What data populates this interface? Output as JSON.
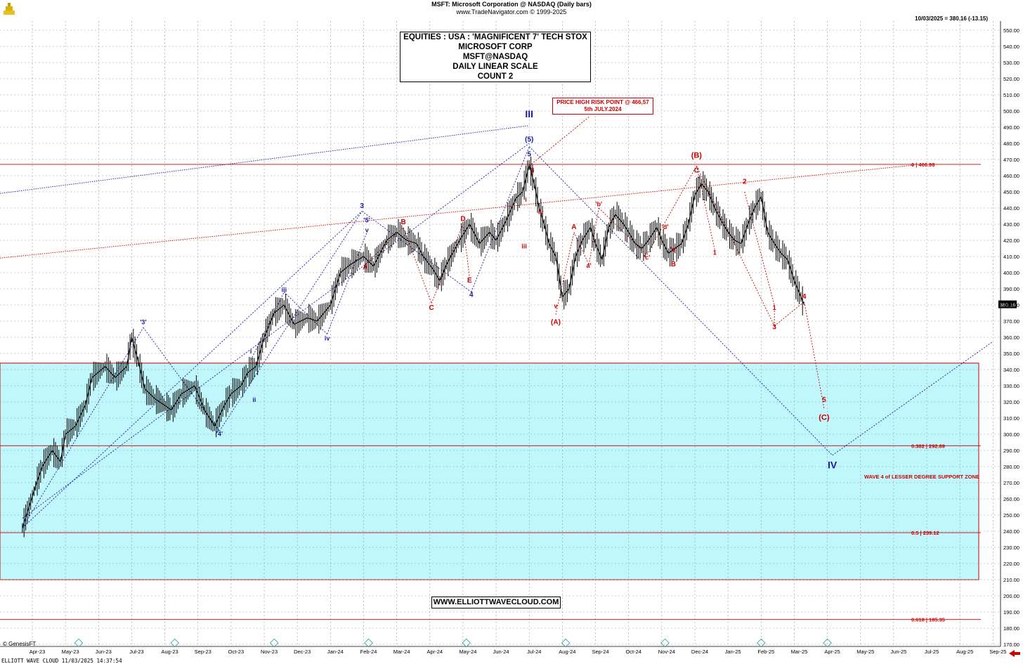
{
  "header": {
    "line1": "MSFT:  Microsoft Corporation @ NASDAQ  (Daily bars)",
    "line2": "www.TradeNavigator.com © 1999-2025",
    "quote": "10/03/2025 = 380.16 (-13.15)"
  },
  "titlebox": {
    "line1": "EQUITIES : USA : 'MAGNIFICENT 7' TECH STOX",
    "line2": "MICROSOFT CORP",
    "line3": "MSFT@NASDAQ",
    "line4": "DAILY LINEAR SCALE",
    "line5": "COUNT 2"
  },
  "riskbox": {
    "line1": "PRICE HIGH RISK POINT @ 466,57",
    "line2": "5th JULY.2024"
  },
  "site": "WWW.ELLIOTTWAVECLOUD.COM",
  "genesis": "© GenesisFT",
  "footer": "ELLIOTT WAVE CLOUD   11/03/2025 14:37:54",
  "colors": {
    "red": "#cc0000",
    "blue": "#1a1aa8",
    "zone": "#bff7fc",
    "candle": "#000000"
  },
  "chart_data": {
    "type": "line",
    "title": "MSFT:  Microsoft Corporation @ NASDAQ  (Daily bars)",
    "ylim": [
      170,
      555
    ],
    "grid": true,
    "y_ticks": [
      170,
      180,
      190,
      200,
      210,
      220,
      230,
      240,
      250,
      260,
      270,
      280,
      290,
      300,
      310,
      320,
      330,
      340,
      350,
      360,
      370,
      380,
      390,
      400,
      410,
      420,
      430,
      440,
      450,
      460,
      470,
      480,
      490,
      500,
      510,
      520,
      530,
      540,
      550
    ],
    "y_tick_labels": [
      "170.00",
      "180.00",
      "190.00",
      "200.00",
      "210.00",
      "220.00",
      "230.00",
      "240.00",
      "250.00",
      "260.00",
      "270.00",
      "280.00",
      "290.00",
      "300.00",
      "310.00",
      "320.00",
      "330.00",
      "340.00",
      "350.00",
      "360.00",
      "370.00",
      "380.00",
      "390.00",
      "400.00",
      "410.00",
      "420.00",
      "430.00",
      "440.00",
      "450.00",
      "460.00",
      "470.00",
      "480.00",
      "490.00",
      "500.00",
      "510.00",
      "520.00",
      "530.00",
      "540.00",
      "550.00"
    ],
    "months": [
      "Apr-23",
      "May-23",
      "Jun-23",
      "Jul-23",
      "Aug-23",
      "Sep-23",
      "Oct-23",
      "Nov-23",
      "Dec-23",
      "Jan-24",
      "Feb-24",
      "Mar-24",
      "Apr-24",
      "May-24",
      "Jun-24",
      "Jul-24",
      "Aug-24",
      "Sep-24",
      "Oct-24",
      "Nov-24",
      "Dec-24",
      "Jan-25",
      "Feb-25",
      "Mar-25",
      "Apr-25",
      "May-25",
      "Jun-25",
      "Jul-25",
      "Aug-25",
      "Sep-25"
    ],
    "month_index": [
      0,
      1,
      2,
      3,
      4,
      5,
      6,
      7,
      8,
      9,
      10,
      11,
      12,
      13,
      14,
      15,
      16,
      17,
      18,
      19,
      20,
      21,
      22,
      23,
      24,
      25,
      26,
      27,
      28,
      29
    ],
    "price_path": [
      [
        -0.3,
        242
      ],
      [
        0.1,
        268
      ],
      [
        0.3,
        280
      ],
      [
        0.6,
        290
      ],
      [
        0.85,
        283
      ],
      [
        1.0,
        300
      ],
      [
        1.3,
        305
      ],
      [
        1.6,
        318
      ],
      [
        1.8,
        335
      ],
      [
        2.2,
        342
      ],
      [
        2.5,
        335
      ],
      [
        2.85,
        342
      ],
      [
        3.0,
        360
      ],
      [
        3.2,
        345
      ],
      [
        3.4,
        328
      ],
      [
        3.7,
        322
      ],
      [
        4.2,
        315
      ],
      [
        4.5,
        325
      ],
      [
        4.9,
        330
      ],
      [
        5.2,
        315
      ],
      [
        5.5,
        305
      ],
      [
        5.8,
        318
      ],
      [
        6.0,
        325
      ],
      [
        6.3,
        330
      ],
      [
        6.5,
        338
      ],
      [
        6.75,
        342
      ],
      [
        7.0,
        360
      ],
      [
        7.3,
        375
      ],
      [
        7.6,
        380
      ],
      [
        7.9,
        368
      ],
      [
        8.3,
        372
      ],
      [
        8.6,
        370
      ],
      [
        9.0,
        380
      ],
      [
        9.3,
        400
      ],
      [
        9.6,
        405
      ],
      [
        10.0,
        410
      ],
      [
        10.3,
        404
      ],
      [
        10.7,
        420
      ],
      [
        11.0,
        425
      ],
      [
        11.3,
        420
      ],
      [
        11.6,
        418
      ],
      [
        11.8,
        410
      ],
      [
        12.1,
        402
      ],
      [
        12.3,
        395
      ],
      [
        12.5,
        405
      ],
      [
        12.9,
        420
      ],
      [
        13.2,
        430
      ],
      [
        13.5,
        418
      ],
      [
        13.8,
        425
      ],
      [
        14.0,
        420
      ],
      [
        14.3,
        432
      ],
      [
        14.6,
        446
      ],
      [
        14.8,
        450
      ],
      [
        15.0,
        466.6
      ],
      [
        15.15,
        455
      ],
      [
        15.3,
        440
      ],
      [
        15.45,
        430
      ],
      [
        15.6,
        418
      ],
      [
        15.8,
        410
      ],
      [
        16.0,
        385
      ],
      [
        16.2,
        390
      ],
      [
        16.4,
        410
      ],
      [
        16.6,
        420
      ],
      [
        16.85,
        428
      ],
      [
        17.0,
        418
      ],
      [
        17.2,
        408
      ],
      [
        17.4,
        428
      ],
      [
        17.6,
        436
      ],
      [
        17.85,
        430
      ],
      [
        18.0,
        425
      ],
      [
        18.2,
        418
      ],
      [
        18.4,
        415
      ],
      [
        18.6,
        420
      ],
      [
        18.85,
        428
      ],
      [
        19.0,
        420
      ],
      [
        19.2,
        412
      ],
      [
        19.4,
        415
      ],
      [
        19.6,
        418
      ],
      [
        19.8,
        430
      ],
      [
        20.0,
        448
      ],
      [
        20.2,
        455
      ],
      [
        20.4,
        450
      ],
      [
        20.6,
        440
      ],
      [
        20.8,
        432
      ],
      [
        21.0,
        425
      ],
      [
        21.2,
        420
      ],
      [
        21.4,
        418
      ],
      [
        21.6,
        430
      ],
      [
        21.8,
        440
      ],
      [
        22.0,
        447
      ],
      [
        22.2,
        425
      ],
      [
        22.4,
        418
      ],
      [
        22.6,
        412
      ],
      [
        22.8,
        408
      ],
      [
        23.0,
        395
      ],
      [
        23.2,
        385
      ],
      [
        23.3,
        380.16
      ]
    ],
    "horizontal_levels": [
      {
        "value": 466.98,
        "label": "0 | 466.98"
      },
      {
        "value": 292.89,
        "label": "0.382 | 292.89"
      },
      {
        "value": 239.12,
        "label": "0.5 | 239.12"
      },
      {
        "value": 185.35,
        "label": "0.618 | 185.35"
      }
    ],
    "last_price_label": "380.16",
    "support_zone": {
      "from": 210,
      "to": 344,
      "label": "WAVE 4 of LESSER DEGREE SUPPORT ZONE"
    },
    "wave_labels": [
      {
        "text": "III",
        "x": 15.0,
        "y": 496,
        "color": "blue",
        "size": 14
      },
      {
        "text": "(5)",
        "x": 15.0,
        "y": 481,
        "color": "blue",
        "size": 10
      },
      {
        "text": "5",
        "x": 15.0,
        "y": 472,
        "color": "blue",
        "size": 10
      },
      {
        "text": "3",
        "x": 9.95,
        "y": 440,
        "color": "blue",
        "size": 10
      },
      {
        "text": "'5'",
        "x": 10.1,
        "y": 431,
        "color": "blue",
        "size": 9
      },
      {
        "text": "v",
        "x": 10.1,
        "y": 425,
        "color": "blue",
        "size": 9
      },
      {
        "text": "iii",
        "x": 7.6,
        "y": 388,
        "color": "blue",
        "size": 9
      },
      {
        "text": "iv",
        "x": 8.9,
        "y": 358,
        "color": "blue",
        "size": 9
      },
      {
        "text": "i",
        "x": 6.6,
        "y": 350,
        "color": "blue",
        "size": 9
      },
      {
        "text": "ii",
        "x": 6.7,
        "y": 320,
        "color": "blue",
        "size": 9
      },
      {
        "text": "'3'",
        "x": 3.35,
        "y": 368,
        "color": "blue",
        "size": 9
      },
      {
        "text": "'4'",
        "x": 5.65,
        "y": 299,
        "color": "blue",
        "size": 9
      },
      {
        "text": "4",
        "x": 13.25,
        "y": 385,
        "color": "blue",
        "size": 10
      },
      {
        "text": "IV",
        "x": 24.15,
        "y": 279,
        "color": "blue",
        "size": 14
      },
      {
        "text": "B",
        "x": 11.2,
        "y": 430,
        "color": "red",
        "size": 10
      },
      {
        "text": "A",
        "x": 10.05,
        "y": 402,
        "color": "red",
        "size": 10
      },
      {
        "text": "C",
        "x": 12.05,
        "y": 377,
        "color": "red",
        "size": 10
      },
      {
        "text": "D",
        "x": 13.0,
        "y": 432,
        "color": "red",
        "size": 10
      },
      {
        "text": "E",
        "x": 13.2,
        "y": 394,
        "color": "red",
        "size": 10
      },
      {
        "text": "ii",
        "x": 15.1,
        "y": 462,
        "color": "red",
        "size": 9
      },
      {
        "text": "i",
        "x": 14.9,
        "y": 444,
        "color": "red",
        "size": 9
      },
      {
        "text": "iv",
        "x": 15.35,
        "y": 436,
        "color": "red",
        "size": 9
      },
      {
        "text": "iii",
        "x": 14.85,
        "y": 415,
        "color": "red",
        "size": 9
      },
      {
        "text": "v",
        "x": 15.8,
        "y": 378,
        "color": "red",
        "size": 9
      },
      {
        "text": "(A)",
        "x": 15.8,
        "y": 368,
        "color": "red",
        "size": 10
      },
      {
        "text": "A",
        "x": 16.35,
        "y": 427,
        "color": "red",
        "size": 10
      },
      {
        "text": "a'",
        "x": 16.8,
        "y": 403,
        "color": "red",
        "size": 9
      },
      {
        "text": "'b'",
        "x": 17.1,
        "y": 441,
        "color": "red",
        "size": 9
      },
      {
        "text": "'c'",
        "x": 18.55,
        "y": 408,
        "color": "red",
        "size": 9
      },
      {
        "text": "'d'",
        "x": 19.1,
        "y": 427,
        "color": "red",
        "size": 9
      },
      {
        "text": "'e'",
        "x": 19.35,
        "y": 413,
        "color": "red",
        "size": 9
      },
      {
        "text": "B",
        "x": 19.35,
        "y": 404,
        "color": "red",
        "size": 10
      },
      {
        "text": "(B)",
        "x": 20.05,
        "y": 471,
        "color": "red",
        "size": 11
      },
      {
        "text": "C",
        "x": 20.05,
        "y": 462,
        "color": "red",
        "size": 10
      },
      {
        "text": "1",
        "x": 20.6,
        "y": 411,
        "color": "red",
        "size": 9
      },
      {
        "text": "2",
        "x": 21.5,
        "y": 455,
        "color": "red",
        "size": 10
      },
      {
        "text": "1",
        "x": 22.4,
        "y": 377,
        "color": "red",
        "size": 9
      },
      {
        "text": "3",
        "x": 22.4,
        "y": 365,
        "color": "red",
        "size": 10
      },
      {
        "text": "4",
        "x": 23.3,
        "y": 384,
        "color": "red",
        "size": 10
      },
      {
        "text": "5",
        "x": 23.9,
        "y": 320,
        "color": "red",
        "size": 10
      },
      {
        "text": "(C)",
        "x": 23.9,
        "y": 309,
        "color": "red",
        "size": 11
      }
    ]
  }
}
